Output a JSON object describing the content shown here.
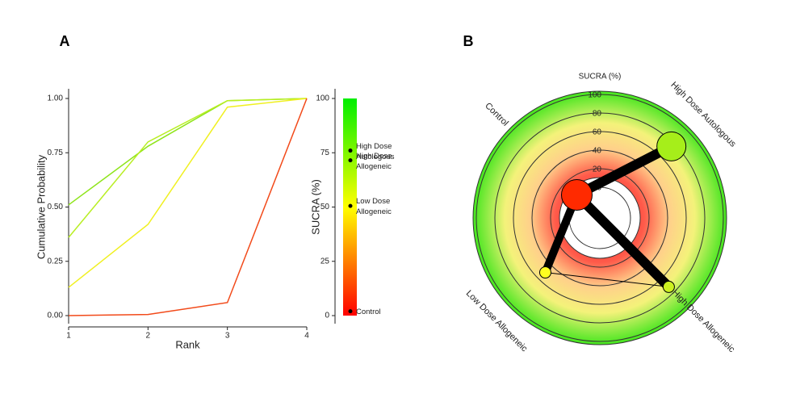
{
  "chart_data": [
    {
      "type": "line",
      "panel": "A",
      "xlabel": "Rank",
      "ylabel": "Cumulative Probability",
      "x": [
        1,
        2,
        3,
        4
      ],
      "xlim": [
        1,
        4
      ],
      "xticks": [
        1,
        2,
        3,
        4
      ],
      "ylim": [
        0,
        1
      ],
      "yticks": [
        {
          "value": 0,
          "label": "0.00"
        },
        {
          "value": 0.25,
          "label": "0.25"
        },
        {
          "value": 0.5,
          "label": "0.50"
        },
        {
          "value": 0.75,
          "label": "0.75"
        },
        {
          "value": 1,
          "label": "1.00"
        }
      ],
      "series": [
        {
          "color": "#8ee41a",
          "values": [
            0.51,
            0.78,
            0.99,
            1.0
          ]
        },
        {
          "color": "#b8ee22",
          "values": [
            0.36,
            0.8,
            0.99,
            1.0
          ]
        },
        {
          "color": "#f0f020",
          "values": [
            0.13,
            0.42,
            0.96,
            1.0
          ]
        },
        {
          "color": "#f24a1a",
          "values": [
            0.0,
            0.005,
            0.06,
            1.0
          ]
        }
      ]
    },
    {
      "type": "colorbar",
      "ylabel": "SUCRA (%)",
      "ylim": [
        0,
        100
      ],
      "yticks": [
        0,
        25,
        50,
        75,
        100
      ],
      "gradient": [
        "#ff0000",
        "#ffff00",
        "#00ee00"
      ],
      "categories": [
        "High Dose Autologous",
        "High Dose Allogeneic",
        "Low Dose Allogeneic",
        "Control"
      ],
      "values": [
        76,
        71.5,
        50.5,
        2
      ]
    },
    {
      "type": "radial",
      "panel": "B",
      "title": "SUCRA (%)",
      "rlim": [
        0,
        100
      ],
      "rticks": [
        0,
        20,
        40,
        60,
        80,
        100
      ],
      "categories": [
        "Control",
        "High Dose Autologous",
        "High Dose Allogeneic",
        "Low Dose Allogeneic"
      ],
      "angles": [
        -135,
        -45,
        45,
        135
      ],
      "values": [
        2,
        76,
        72,
        50
      ],
      "sizes": [
        19,
        18,
        7,
        7
      ],
      "colors": [
        "#ff2a00",
        "#a6ee1a",
        "#ccf020",
        "#ffff20"
      ],
      "edges": [
        {
          "from": "Control",
          "to": "High Dose Autologous",
          "width": 12
        },
        {
          "from": "Control",
          "to": "High Dose Allogeneic",
          "width": 12
        },
        {
          "from": "Control",
          "to": "Low Dose Allogeneic",
          "width": 10
        },
        {
          "from": "Low Dose Allogeneic",
          "to": "High Dose Allogeneic",
          "width": 1
        }
      ]
    }
  ]
}
